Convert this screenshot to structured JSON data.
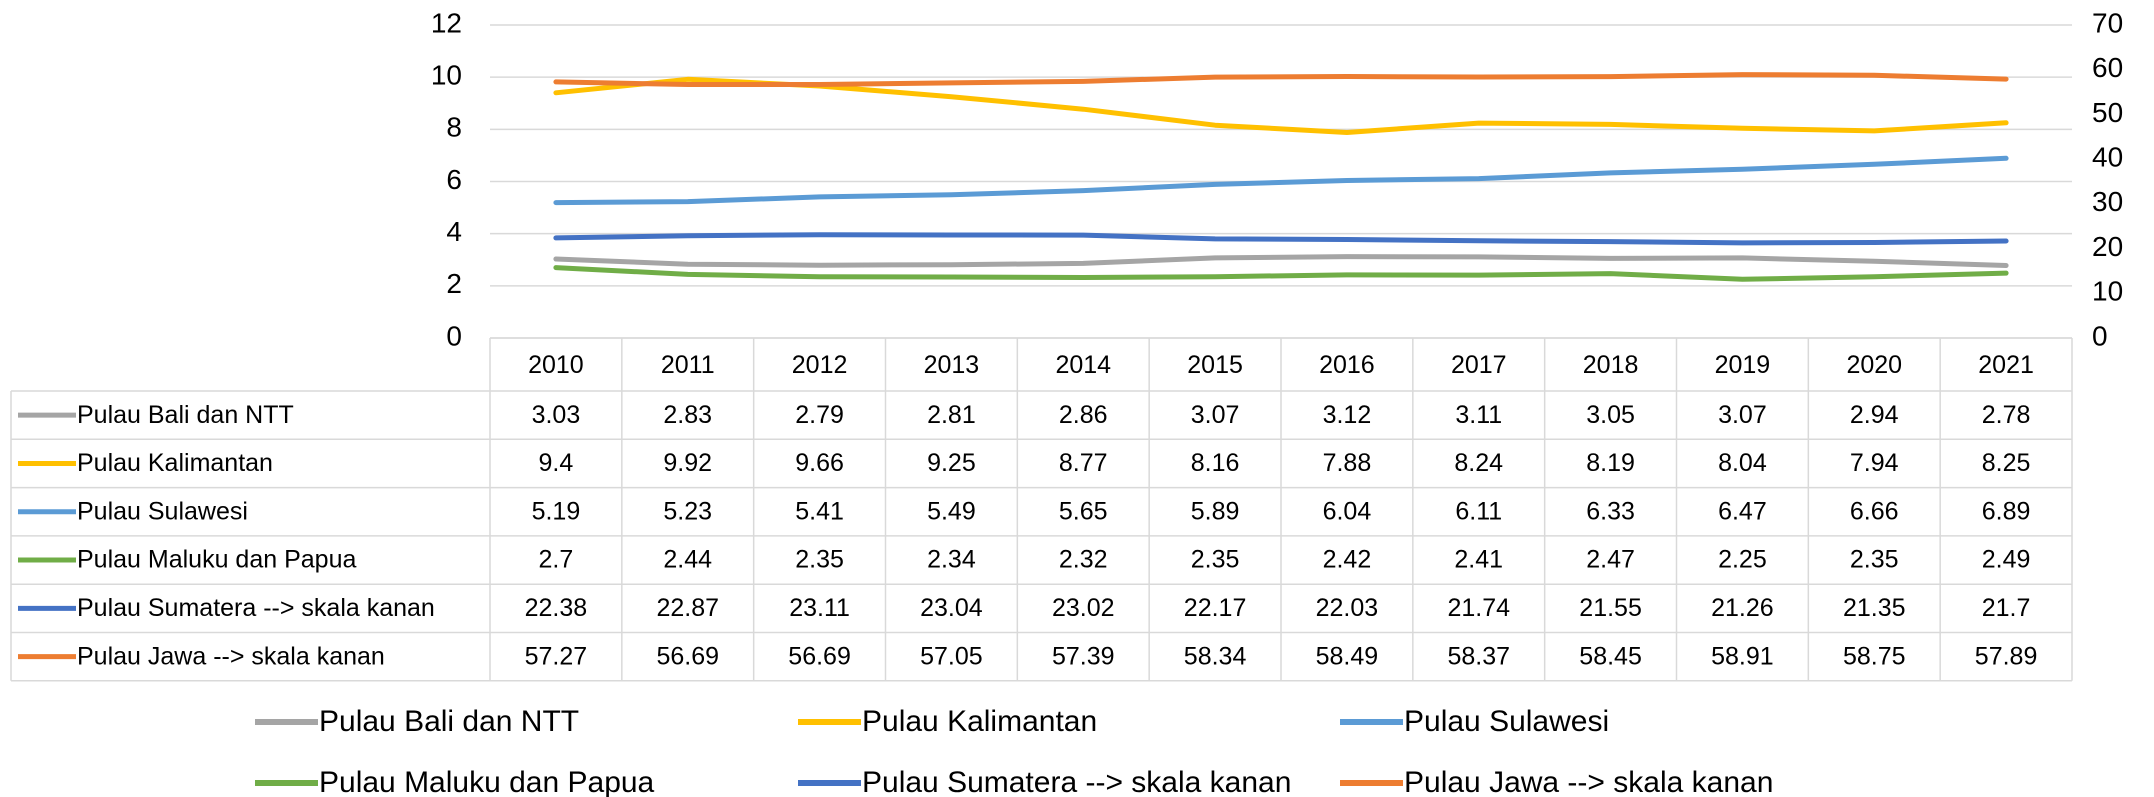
{
  "chart_data": {
    "type": "line",
    "categories": [
      "2010",
      "2011",
      "2012",
      "2013",
      "2014",
      "2015",
      "2016",
      "2017",
      "2018",
      "2019",
      "2020",
      "2021"
    ],
    "series": [
      {
        "name": "Pulau Bali dan NTT",
        "color": "#a5a5a5",
        "axis": "y",
        "values": [
          3.03,
          2.83,
          2.79,
          2.81,
          2.86,
          3.07,
          3.12,
          3.11,
          3.05,
          3.07,
          2.94,
          2.78
        ]
      },
      {
        "name": "Pulau Kalimantan",
        "color": "#ffc000",
        "axis": "y",
        "values": [
          9.4,
          9.92,
          9.66,
          9.25,
          8.77,
          8.16,
          7.88,
          8.24,
          8.19,
          8.04,
          7.94,
          8.25
        ]
      },
      {
        "name": "Pulau Sulawesi",
        "color": "#5b9bd5",
        "axis": "y",
        "values": [
          5.19,
          5.23,
          5.41,
          5.49,
          5.65,
          5.89,
          6.04,
          6.11,
          6.33,
          6.47,
          6.66,
          6.89
        ]
      },
      {
        "name": "Pulau Maluku dan Papua",
        "color": "#70ad47",
        "axis": "y",
        "values": [
          2.7,
          2.44,
          2.35,
          2.34,
          2.32,
          2.35,
          2.42,
          2.41,
          2.47,
          2.25,
          2.35,
          2.49
        ]
      },
      {
        "name": "Pulau Sumatera --> skala kanan",
        "color": "#4472c4",
        "axis": "y2",
        "values": [
          22.38,
          22.87,
          23.11,
          23.04,
          23.02,
          22.17,
          22.03,
          21.74,
          21.55,
          21.26,
          21.35,
          21.7
        ]
      },
      {
        "name": "Pulau Jawa --> skala kanan",
        "color": "#ed7d31",
        "axis": "y2",
        "values": [
          57.27,
          56.69,
          56.69,
          57.05,
          57.39,
          58.34,
          58.49,
          58.37,
          58.45,
          58.91,
          58.75,
          57.89
        ]
      }
    ],
    "ylim": [
      0,
      12
    ],
    "yticks": [
      0,
      2,
      4,
      6,
      8,
      10,
      12
    ],
    "y2lim": [
      0,
      70
    ],
    "y2ticks": [
      0,
      10,
      20,
      30,
      40,
      50,
      60,
      70
    ],
    "grid": true
  }
}
